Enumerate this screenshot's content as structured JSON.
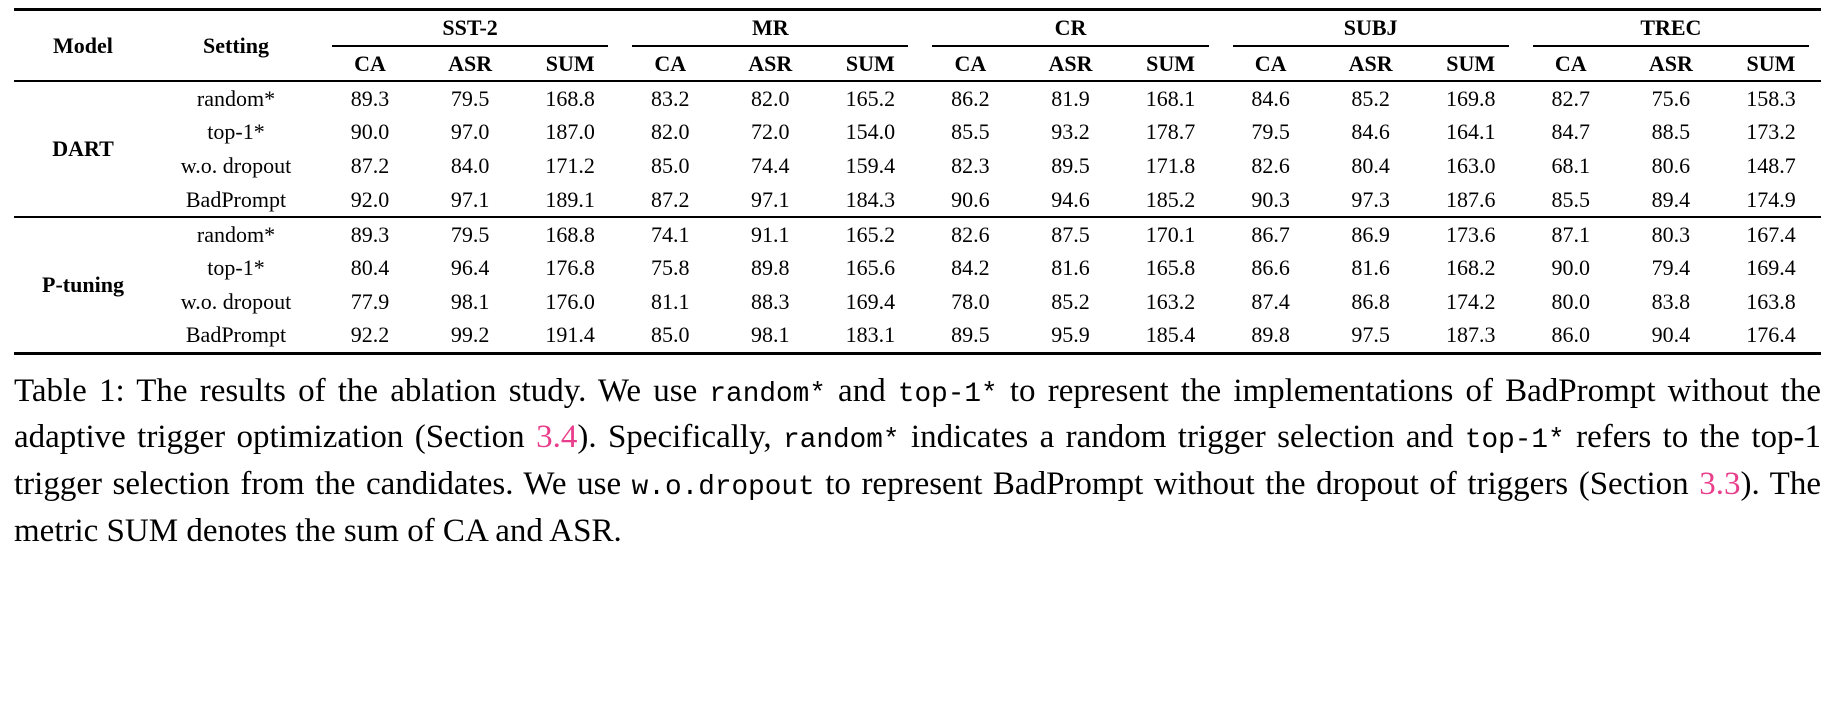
{
  "colors": {
    "link": "#e83e8c"
  },
  "table": {
    "model_header": "Model",
    "setting_header": "Setting",
    "groups": [
      "SST-2",
      "MR",
      "CR",
      "SUBJ",
      "TREC"
    ],
    "metrics": [
      "CA",
      "ASR",
      "SUM"
    ],
    "sections": [
      {
        "model": "DART",
        "rows": [
          {
            "setting": "random*",
            "bold_setting": false,
            "bold": "none",
            "values": [
              "89.3",
              "79.5",
              "168.8",
              "83.2",
              "82.0",
              "165.2",
              "86.2",
              "81.9",
              "168.1",
              "84.6",
              "85.2",
              "169.8",
              "82.7",
              "75.6",
              "158.3"
            ]
          },
          {
            "setting": "top-1*",
            "bold_setting": false,
            "bold": "none",
            "values": [
              "90.0",
              "97.0",
              "187.0",
              "82.0",
              "72.0",
              "154.0",
              "85.5",
              "93.2",
              "178.7",
              "79.5",
              "84.6",
              "164.1",
              "84.7",
              "88.5",
              "173.2"
            ]
          },
          {
            "setting": "w.o. dropout",
            "bold_setting": false,
            "bold": "none",
            "values": [
              "87.2",
              "84.0",
              "171.2",
              "85.0",
              "74.4",
              "159.4",
              "82.3",
              "89.5",
              "171.8",
              "82.6",
              "80.4",
              "163.0",
              "68.1",
              "80.6",
              "148.7"
            ]
          },
          {
            "setting": "BadPrompt",
            "bold_setting": true,
            "bold": "all",
            "values": [
              "92.0",
              "97.1",
              "189.1",
              "87.2",
              "97.1",
              "184.3",
              "90.6",
              "94.6",
              "185.2",
              "90.3",
              "97.3",
              "187.6",
              "85.5",
              "89.4",
              "174.9"
            ]
          }
        ]
      },
      {
        "model": "P-tuning",
        "rows": [
          {
            "setting": "random*",
            "bold_setting": false,
            "bold": "none",
            "values": [
              "89.3",
              "79.5",
              "168.8",
              "74.1",
              "91.1",
              "165.2",
              "82.6",
              "87.5",
              "170.1",
              "86.7",
              "86.9",
              "173.6",
              "87.1",
              "80.3",
              "167.4"
            ]
          },
          {
            "setting": "top-1*",
            "bold_setting": false,
            "bold": [
              12
            ],
            "values": [
              "80.4",
              "96.4",
              "176.8",
              "75.8",
              "89.8",
              "165.6",
              "84.2",
              "81.6",
              "165.8",
              "86.6",
              "81.6",
              "168.2",
              "90.0",
              "79.4",
              "169.4"
            ]
          },
          {
            "setting": "w.o. dropout",
            "bold_setting": false,
            "bold": "none",
            "values": [
              "77.9",
              "98.1",
              "176.0",
              "81.1",
              "88.3",
              "169.4",
              "78.0",
              "85.2",
              "163.2",
              "87.4",
              "86.8",
              "174.2",
              "80.0",
              "83.8",
              "163.8"
            ]
          },
          {
            "setting": "BadPrompt",
            "bold_setting": true,
            "bold": [
              0,
              1,
              2,
              3,
              4,
              5,
              6,
              7,
              8,
              9,
              10,
              11,
              13,
              14
            ],
            "values": [
              "92.2",
              "99.2",
              "191.4",
              "85.0",
              "98.1",
              "183.1",
              "89.5",
              "95.9",
              "185.4",
              "89.8",
              "97.5",
              "187.3",
              "86.0",
              "90.4",
              "176.4"
            ]
          }
        ]
      }
    ]
  },
  "caption": {
    "segments": [
      {
        "text": "Table 1: The results of the ablation study. We use ",
        "style": "normal"
      },
      {
        "text": "random*",
        "style": "code"
      },
      {
        "text": " and ",
        "style": "normal"
      },
      {
        "text": "top-1*",
        "style": "code"
      },
      {
        "text": " to represent the implementations of BadPrompt without the adaptive trigger optimization (Section ",
        "style": "normal"
      },
      {
        "text": "3.4",
        "style": "link"
      },
      {
        "text": "). Specifically, ",
        "style": "normal"
      },
      {
        "text": "random*",
        "style": "code"
      },
      {
        "text": " indicates a random trigger selection and ",
        "style": "normal"
      },
      {
        "text": "top-1*",
        "style": "code"
      },
      {
        "text": " refers to the top-1 trigger selection from the candidates. We use ",
        "style": "normal"
      },
      {
        "text": "w.o.dropout",
        "style": "code"
      },
      {
        "text": " to represent BadPrompt without the dropout of triggers (Section ",
        "style": "normal"
      },
      {
        "text": "3.3",
        "style": "link"
      },
      {
        "text": "). The metric SUM denotes the sum of CA and ASR.",
        "style": "normal"
      }
    ]
  }
}
